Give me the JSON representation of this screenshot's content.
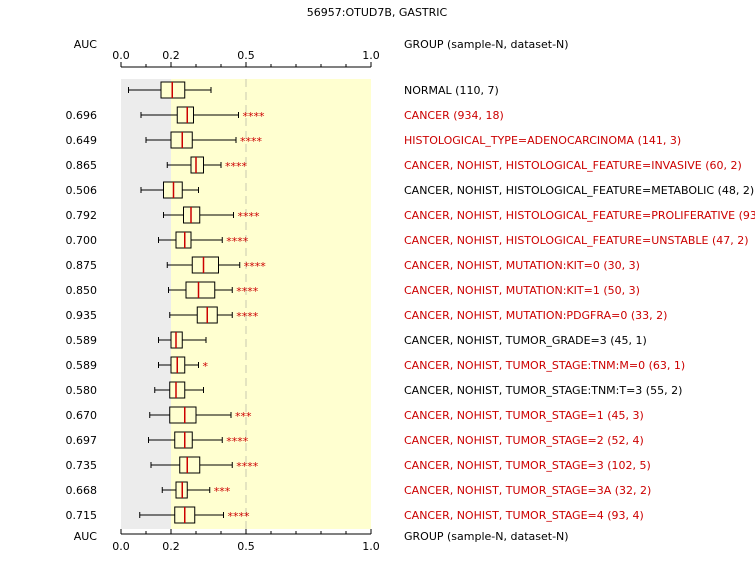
{
  "chart_data": {
    "type": "boxplot",
    "title": "56957:OTUD7B, GASTRIC",
    "auc_header": "AUC",
    "group_header": "GROUP (sample-N, dataset-N)",
    "xlim": [
      0.0,
      1.0
    ],
    "ticks": [
      {
        "value": 0.0,
        "label": "0.0"
      },
      {
        "value": 0.2,
        "label": "0.2"
      },
      {
        "value": 0.5,
        "label": "0.5"
      },
      {
        "value": 1.0,
        "label": "1.0"
      }
    ],
    "background": {
      "gray_until": 0.2,
      "gray_color": "#ececec",
      "yellow_color": "#ffffd0"
    },
    "colors": {
      "significant": "#cc0000",
      "normal": "#000000",
      "median": "#cc0000",
      "box_fill": "#ffffd0"
    },
    "rows": [
      {
        "auc": "",
        "group": "NORMAL (110, 7)",
        "red": false,
        "whisker_low": 0.03,
        "q1": 0.16,
        "median": 0.205,
        "q3": 0.255,
        "whisker_high": 0.36,
        "stars": ""
      },
      {
        "auc": "0.696",
        "group": "CANCER (934, 18)",
        "red": true,
        "whisker_low": 0.08,
        "q1": 0.225,
        "median": 0.265,
        "q3": 0.29,
        "whisker_high": 0.47,
        "stars": "****"
      },
      {
        "auc": "0.649",
        "group": "HISTOLOGICAL_TYPE=ADENOCARCINOMA (141, 3)",
        "red": true,
        "whisker_low": 0.1,
        "q1": 0.2,
        "median": 0.245,
        "q3": 0.285,
        "whisker_high": 0.46,
        "stars": "****"
      },
      {
        "auc": "0.865",
        "group": "CANCER, NOHIST, HISTOLOGICAL_FEATURE=INVASIVE (60, 2)",
        "red": true,
        "whisker_low": 0.185,
        "q1": 0.28,
        "median": 0.3,
        "q3": 0.33,
        "whisker_high": 0.4,
        "stars": "****"
      },
      {
        "auc": "0.506",
        "group": "CANCER, NOHIST, HISTOLOGICAL_FEATURE=METABOLIC (48, 2)",
        "red": false,
        "whisker_low": 0.08,
        "q1": 0.17,
        "median": 0.21,
        "q3": 0.245,
        "whisker_high": 0.31,
        "stars": ""
      },
      {
        "auc": "0.792",
        "group": "CANCER, NOHIST, HISTOLOGICAL_FEATURE=PROLIFERATIVE (93, 2)",
        "red": true,
        "whisker_low": 0.17,
        "q1": 0.25,
        "median": 0.28,
        "q3": 0.315,
        "whisker_high": 0.45,
        "stars": "****"
      },
      {
        "auc": "0.700",
        "group": "CANCER, NOHIST, HISTOLOGICAL_FEATURE=UNSTABLE (47, 2)",
        "red": true,
        "whisker_low": 0.15,
        "q1": 0.22,
        "median": 0.255,
        "q3": 0.28,
        "whisker_high": 0.405,
        "stars": "****"
      },
      {
        "auc": "0.875",
        "group": "CANCER, NOHIST, MUTATION:KIT=0 (30, 3)",
        "red": true,
        "whisker_low": 0.185,
        "q1": 0.285,
        "median": 0.33,
        "q3": 0.39,
        "whisker_high": 0.475,
        "stars": "****"
      },
      {
        "auc": "0.850",
        "group": "CANCER, NOHIST, MUTATION:KIT=1 (50, 3)",
        "red": true,
        "whisker_low": 0.19,
        "q1": 0.26,
        "median": 0.31,
        "q3": 0.375,
        "whisker_high": 0.445,
        "stars": "****"
      },
      {
        "auc": "0.935",
        "group": "CANCER, NOHIST, MUTATION:PDGFRA=0 (33, 2)",
        "red": true,
        "whisker_low": 0.195,
        "q1": 0.305,
        "median": 0.345,
        "q3": 0.385,
        "whisker_high": 0.445,
        "stars": "****"
      },
      {
        "auc": "0.589",
        "group": "CANCER, NOHIST, TUMOR_GRADE=3 (45, 1)",
        "red": false,
        "whisker_low": 0.15,
        "q1": 0.2,
        "median": 0.22,
        "q3": 0.245,
        "whisker_high": 0.34,
        "stars": ""
      },
      {
        "auc": "0.589",
        "group": "CANCER, NOHIST, TUMOR_STAGE:TNM:M=0 (63, 1)",
        "red": true,
        "whisker_low": 0.15,
        "q1": 0.2,
        "median": 0.225,
        "q3": 0.255,
        "whisker_high": 0.31,
        "stars": "*"
      },
      {
        "auc": "0.580",
        "group": "CANCER, NOHIST, TUMOR_STAGE:TNM:T=3 (55, 2)",
        "red": false,
        "whisker_low": 0.135,
        "q1": 0.195,
        "median": 0.22,
        "q3": 0.255,
        "whisker_high": 0.33,
        "stars": ""
      },
      {
        "auc": "0.670",
        "group": "CANCER, NOHIST, TUMOR_STAGE=1 (45, 3)",
        "red": true,
        "whisker_low": 0.115,
        "q1": 0.195,
        "median": 0.255,
        "q3": 0.3,
        "whisker_high": 0.44,
        "stars": "***"
      },
      {
        "auc": "0.697",
        "group": "CANCER, NOHIST, TUMOR_STAGE=2 (52, 4)",
        "red": true,
        "whisker_low": 0.11,
        "q1": 0.215,
        "median": 0.255,
        "q3": 0.285,
        "whisker_high": 0.405,
        "stars": "****"
      },
      {
        "auc": "0.735",
        "group": "CANCER, NOHIST, TUMOR_STAGE=3 (102, 5)",
        "red": true,
        "whisker_low": 0.12,
        "q1": 0.235,
        "median": 0.265,
        "q3": 0.315,
        "whisker_high": 0.445,
        "stars": "****"
      },
      {
        "auc": "0.668",
        "group": "CANCER, NOHIST, TUMOR_STAGE=3A (32, 2)",
        "red": true,
        "whisker_low": 0.165,
        "q1": 0.22,
        "median": 0.245,
        "q3": 0.265,
        "whisker_high": 0.355,
        "stars": "***"
      },
      {
        "auc": "0.715",
        "group": "CANCER, NOHIST, TUMOR_STAGE=4 (93, 4)",
        "red": true,
        "whisker_low": 0.075,
        "q1": 0.215,
        "median": 0.255,
        "q3": 0.295,
        "whisker_high": 0.41,
        "stars": "****"
      }
    ]
  }
}
